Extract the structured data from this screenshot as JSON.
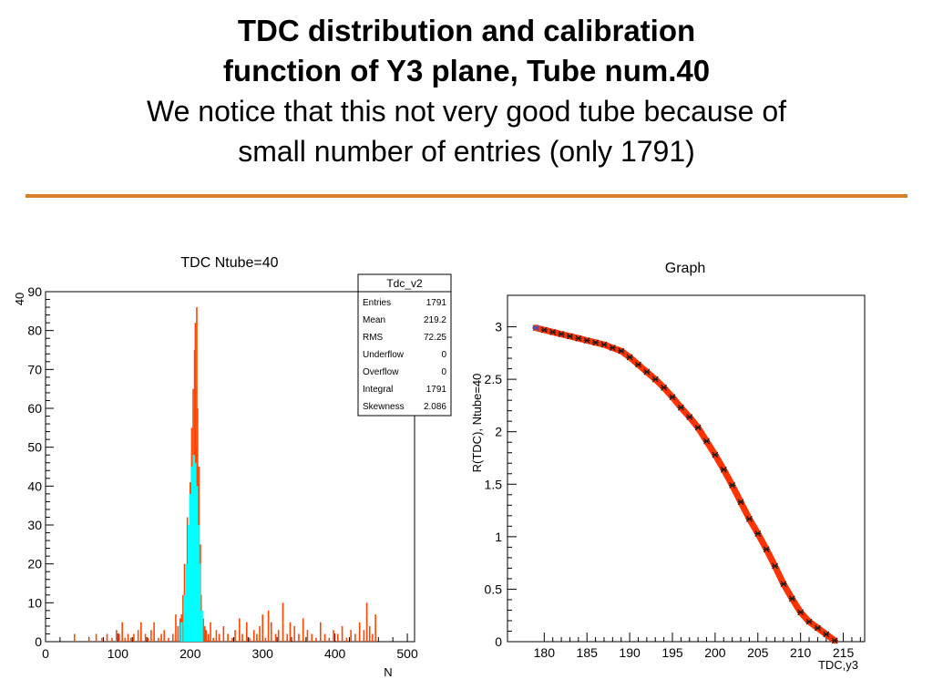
{
  "slide": {
    "title_line1": "TDC distribution and calibration",
    "title_line2": "function of Y3 plane, Tube num.40",
    "subtitle_line1": "We notice that  this not very good tube because of",
    "subtitle_line2": "small number of entries (only 1791)",
    "rule_color": "#d9822b"
  },
  "chart_data": [
    {
      "type": "bar",
      "title": "TDC Ntube=40",
      "xlabel": "N",
      "ylabel": "40",
      "xlim": [
        0,
        510
      ],
      "ylim": [
        0,
        90
      ],
      "xticks": [
        0,
        100,
        200,
        300,
        400,
        500
      ],
      "yticks": [
        0,
        10,
        20,
        30,
        40,
        50,
        60,
        70,
        80,
        90
      ],
      "series": [
        {
          "color": "#ff4500",
          "x": [
            40,
            60,
            70,
            78,
            85,
            92,
            98,
            102,
            106,
            110,
            114,
            118,
            122,
            128,
            132,
            138,
            142,
            146,
            150,
            156,
            160,
            164,
            170,
            176,
            180,
            183,
            186,
            188,
            190,
            192,
            194,
            196,
            198,
            200,
            202,
            203,
            204,
            205,
            206,
            207,
            208,
            209,
            210,
            211,
            212,
            213,
            214,
            215,
            216,
            218,
            220,
            222,
            225,
            228,
            232,
            236,
            240,
            246,
            252,
            258,
            262,
            268,
            272,
            278,
            282,
            288,
            292,
            296,
            300,
            304,
            308,
            312,
            318,
            322,
            328,
            334,
            338,
            344,
            350,
            356,
            362,
            368,
            374,
            380,
            386,
            392,
            398,
            404,
            410,
            416,
            422,
            428,
            434,
            440,
            444,
            448,
            452,
            456
          ],
          "values": [
            2,
            1,
            2,
            1,
            2,
            1,
            3,
            2,
            5,
            1,
            2,
            1,
            2,
            3,
            5,
            2,
            1,
            3,
            5,
            1,
            2,
            3,
            1,
            2,
            7,
            4,
            6,
            7,
            12,
            20,
            8,
            32,
            15,
            41,
            55,
            30,
            65,
            40,
            75,
            82,
            50,
            86,
            60,
            30,
            45,
            20,
            25,
            12,
            8,
            6,
            4,
            3,
            2,
            5,
            1,
            3,
            2,
            4,
            2,
            1,
            3,
            6,
            2,
            5,
            1,
            3,
            2,
            4,
            7,
            1,
            8,
            5,
            2,
            3,
            10,
            2,
            5,
            4,
            2,
            6,
            3,
            2,
            1,
            5,
            2,
            1,
            3,
            2,
            4,
            1,
            3,
            2,
            5,
            3,
            10,
            4,
            2,
            7
          ]
        },
        {
          "color": "#00ffff",
          "x": [
            188,
            192,
            195,
            198,
            200,
            203,
            205,
            207,
            209,
            211,
            213,
            216
          ],
          "values": [
            5,
            12,
            20,
            30,
            38,
            45,
            48,
            46,
            40,
            30,
            20,
            8
          ]
        }
      ],
      "stats_box": {
        "title": "Tdc_v2",
        "rows": [
          {
            "label": "Entries",
            "value": "1791"
          },
          {
            "label": "Mean",
            "value": "219.2"
          },
          {
            "label": "RMS",
            "value": "72.25"
          },
          {
            "label": "Underflow",
            "value": "0"
          },
          {
            "label": "Overflow",
            "value": "0"
          },
          {
            "label": "Integral",
            "value": "1791"
          },
          {
            "label": "Skewness",
            "value": "2.086"
          }
        ]
      }
    },
    {
      "type": "line",
      "title": "Graph",
      "xlabel": "TDC,y3",
      "ylabel": "R(TDC), Ntube=40",
      "xlim": [
        175.7,
        217.5
      ],
      "ylim": [
        0,
        3.3
      ],
      "xticks": [
        180,
        185,
        190,
        195,
        200,
        205,
        210,
        215
      ],
      "yticks": [
        0,
        0.5,
        1,
        1.5,
        2,
        2.5,
        3
      ],
      "line_color": "#ff3300",
      "marker_color": "#1a1a1a",
      "series": [
        {
          "x": [
            179,
            180,
            181,
            182,
            183,
            184,
            185,
            186,
            187,
            188,
            189,
            190,
            191,
            192,
            193,
            194,
            195,
            196,
            197,
            198,
            199,
            200,
            201,
            202,
            203,
            204,
            205,
            206,
            207,
            208,
            209,
            210,
            211,
            212,
            213,
            214
          ],
          "y": [
            2.99,
            2.97,
            2.95,
            2.93,
            2.91,
            2.89,
            2.87,
            2.85,
            2.83,
            2.8,
            2.77,
            2.71,
            2.64,
            2.57,
            2.5,
            2.42,
            2.33,
            2.23,
            2.14,
            2.04,
            1.91,
            1.78,
            1.64,
            1.49,
            1.33,
            1.17,
            1.03,
            0.88,
            0.72,
            0.55,
            0.41,
            0.28,
            0.19,
            0.13,
            0.07,
            0.01
          ]
        }
      ]
    }
  ]
}
